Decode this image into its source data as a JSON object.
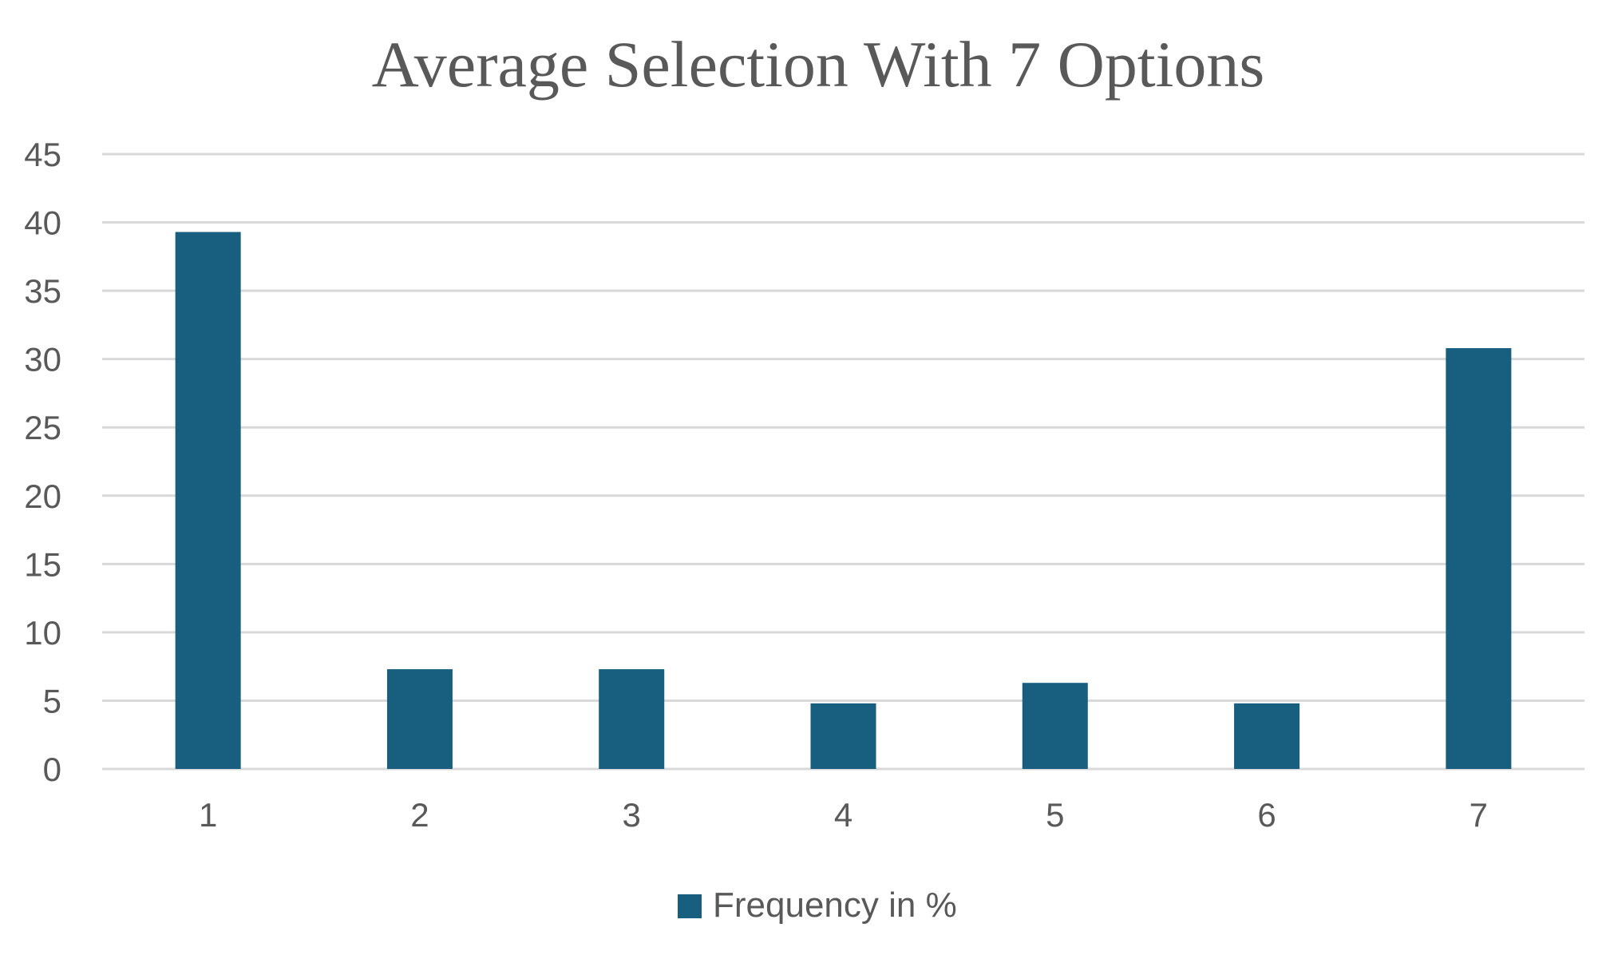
{
  "chart_data": {
    "type": "bar",
    "title": "Average Selection With 7 Options",
    "xlabel": "",
    "ylabel": "",
    "categories": [
      "1",
      "2",
      "3",
      "4",
      "5",
      "6",
      "7"
    ],
    "series": [
      {
        "name": "Frequency in %",
        "values": [
          39.3,
          7.3,
          7.3,
          4.8,
          6.3,
          4.8,
          30.8
        ],
        "color": "#175e7f"
      }
    ],
    "ylim": [
      0,
      45
    ],
    "yticks": [
      "0",
      "5",
      "10",
      "15",
      "20",
      "25",
      "30",
      "35",
      "40",
      "45"
    ],
    "grid": true,
    "legend_position": "bottom"
  }
}
